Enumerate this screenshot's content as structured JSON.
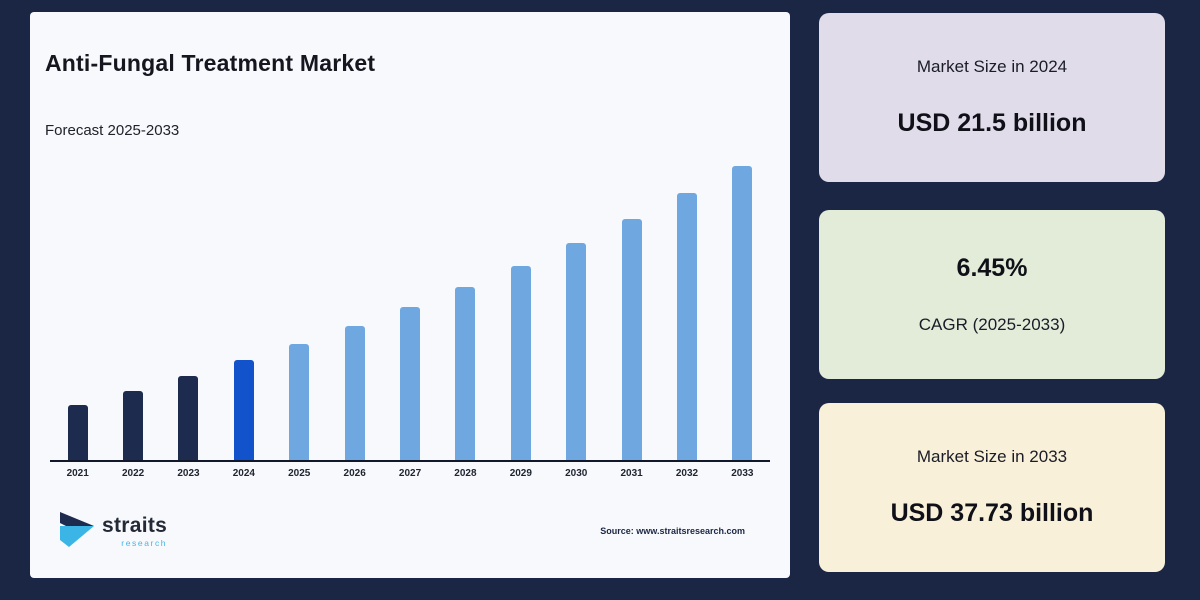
{
  "page": {
    "background": "#1b2644"
  },
  "card": {
    "background": "#f8f9fc",
    "title": "Anti-Fungal Treatment Market",
    "subtitle": "Forecast 2025-2033",
    "source": "Source: www.straitsresearch.com",
    "logo": {
      "name": "straits",
      "sub": "research"
    }
  },
  "chart_data": {
    "type": "bar",
    "title": "Anti-Fungal Treatment Market",
    "subtitle": "Forecast 2025-2033",
    "unit": "USD billion",
    "categories": [
      "2021",
      "2022",
      "2023",
      "2024",
      "2025",
      "2026",
      "2027",
      "2028",
      "2029",
      "2030",
      "2031",
      "2032",
      "2033"
    ],
    "values": [
      17.82,
      18.97,
      20.2,
      21.5,
      22.89,
      24.36,
      25.93,
      27.61,
      29.39,
      31.28,
      33.3,
      35.45,
      37.73
    ],
    "bar_roles": [
      "historical",
      "historical",
      "historical",
      "base_year",
      "forecast",
      "forecast",
      "forecast",
      "forecast",
      "forecast",
      "forecast",
      "forecast",
      "forecast",
      "forecast"
    ],
    "colors": {
      "historical": "#1d2b4e",
      "base_year": "#1253cb",
      "forecast": "#6fa8e0",
      "axis": "#10182a"
    },
    "xlabel": "",
    "ylabel": "",
    "ylim": [
      13.2,
      38.5
    ],
    "grid": false,
    "legend": false
  },
  "panels": [
    {
      "label": "Market Size in 2024",
      "value": "USD 21.5 billion",
      "bg": "#e0dcea"
    },
    {
      "value": "6.45%",
      "label": "CAGR (2025-2033)",
      "bg": "#e3ecd9"
    },
    {
      "label": "Market Size in 2033",
      "value": "USD 37.73 billion",
      "bg": "#f8f0d8"
    }
  ],
  "logo_colors": {
    "dark": "#1d2b4e",
    "light": "#3ab5e6"
  }
}
